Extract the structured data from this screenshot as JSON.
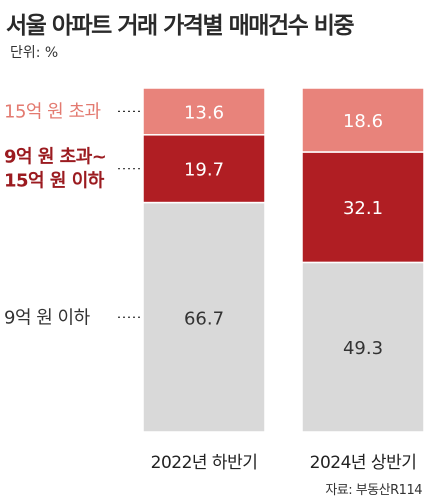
{
  "title": "서울 아파트 거래 가격별 매매건수 비중",
  "unit_label": "단위: %",
  "source": "자료: 부동산R114",
  "chart_data": {
    "type": "bar",
    "stacked": true,
    "orientation": "vertical",
    "percent_scale": true,
    "ylim": [
      0,
      100
    ],
    "categories": [
      "2022년 하반기",
      "2024년 상반기"
    ],
    "series": [
      {
        "name": "9억 원 이하",
        "values": [
          66.7,
          49.3
        ],
        "color": "#d9d9d9",
        "label_color": "#333333"
      },
      {
        "name": "9억 원 초과~ 15억 원 이하",
        "label_lines": [
          "9억 원 초과~",
          "15억 원 이하"
        ],
        "values": [
          19.7,
          32.1
        ],
        "color": "#b01e23",
        "label_color": "#ffffff"
      },
      {
        "name": "15억 원 초과",
        "values": [
          13.6,
          18.6
        ],
        "color": "#e8837b",
        "label_color": "#ffffff"
      }
    ],
    "legend_placement": "left",
    "grid": false
  },
  "colors": {
    "legend_text_low": "#333333",
    "legend_text_mid": "#9b1b20",
    "legend_text_high": "#e37a70"
  }
}
